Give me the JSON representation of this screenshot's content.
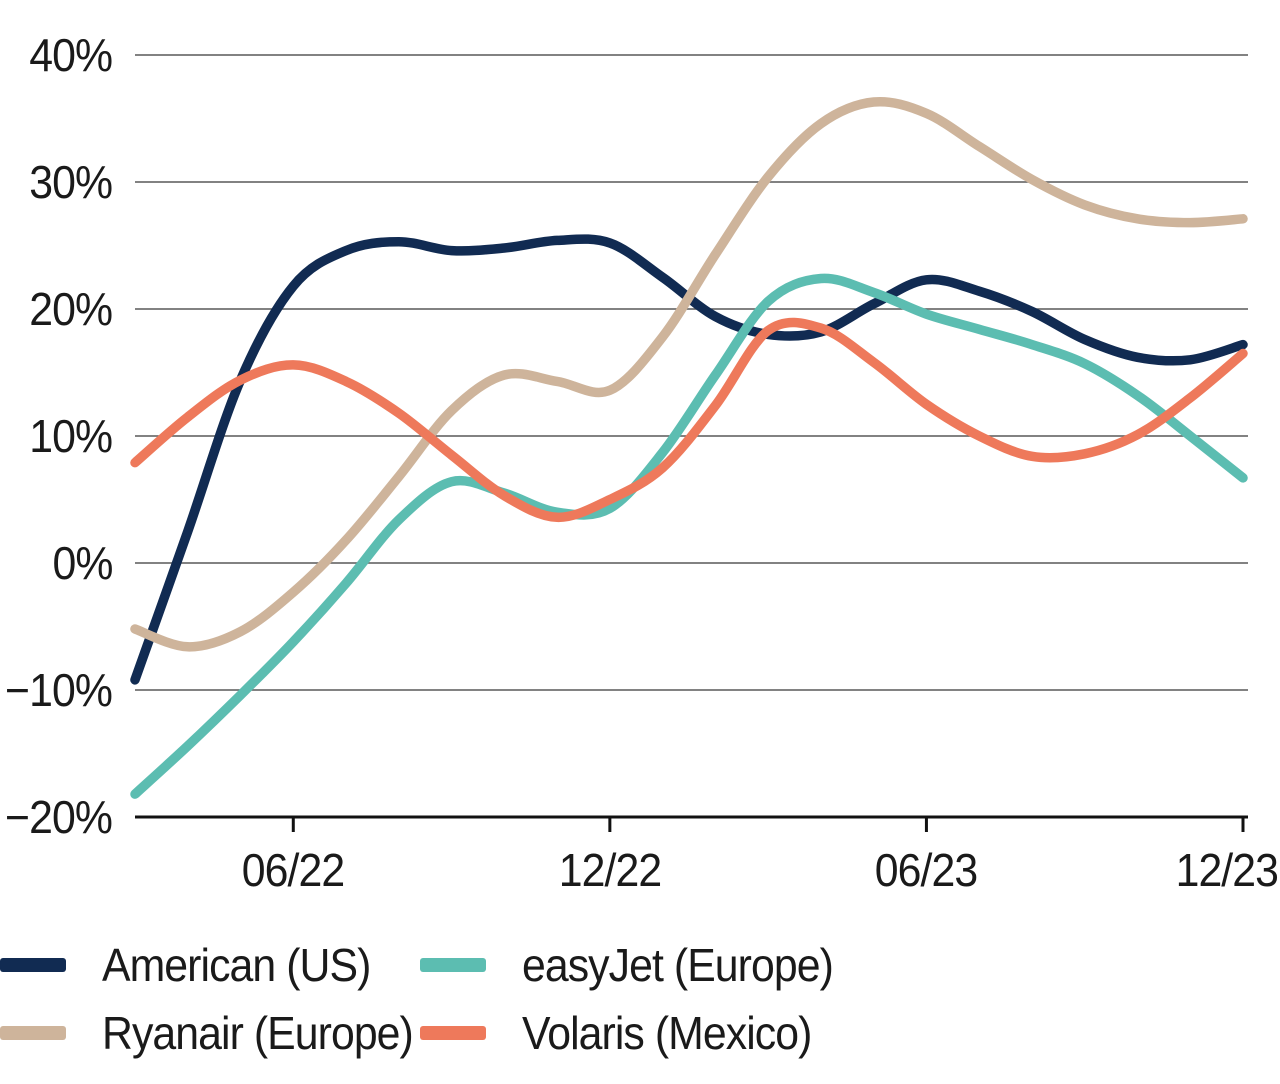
{
  "chart_data": {
    "type": "line",
    "title": "",
    "ylim": [
      -20,
      40
    ],
    "grid": true,
    "legend_position": "bottom-left",
    "yticks": [
      {
        "value": 40,
        "label": "40%"
      },
      {
        "value": 30,
        "label": "30%"
      },
      {
        "value": 20,
        "label": "20%"
      },
      {
        "value": 10,
        "label": "10%"
      },
      {
        "value": 0,
        "label": "0%"
      },
      {
        "value": -10,
        "label": "−10%"
      },
      {
        "value": -20,
        "label": "−20%"
      }
    ],
    "x_ticks": [
      {
        "index": 3,
        "label": "06/22"
      },
      {
        "index": 9,
        "label": "12/22"
      },
      {
        "index": 15,
        "label": "06/23"
      },
      {
        "index": 21,
        "label": "12/23"
      }
    ],
    "unit": "%",
    "series": [
      {
        "name": "American (US)",
        "color": "#112b52",
        "values": [
          -9.2,
          2.5,
          14.4,
          21.8,
          24.6,
          25.3,
          24.6,
          24.8,
          25.4,
          25.2,
          22.5,
          19.4,
          18.0,
          18.2,
          20.4,
          22.3,
          21.4,
          19.8,
          17.6,
          16.2,
          16.0,
          17.2
        ]
      },
      {
        "name": "Ryanair (Europe)",
        "color": "#ceb49b",
        "values": [
          -5.2,
          -6.6,
          -5.4,
          -2.3,
          1.8,
          6.8,
          12.0,
          14.8,
          14.3,
          13.6,
          17.8,
          24.3,
          30.4,
          34.6,
          36.3,
          35.4,
          32.8,
          30.2,
          28.2,
          27.1,
          26.8,
          27.1
        ]
      },
      {
        "name": "easyJet (Europe)",
        "color": "#5cbdb1",
        "values": [
          -18.2,
          -14.4,
          -10.4,
          -6.2,
          -1.6,
          3.4,
          6.4,
          5.5,
          4.0,
          4.3,
          8.7,
          14.8,
          20.6,
          22.4,
          21.3,
          19.6,
          18.4,
          17.2,
          15.7,
          13.2,
          10.0,
          6.7
        ]
      },
      {
        "name": "Volaris (Mexico)",
        "color": "#ee795b",
        "values": [
          7.9,
          11.5,
          14.4,
          15.6,
          14.3,
          11.8,
          8.5,
          5.3,
          3.6,
          5.0,
          7.5,
          12.4,
          18.3,
          18.5,
          15.8,
          12.5,
          10.0,
          8.4,
          8.6,
          10.1,
          13.0,
          16.5
        ]
      }
    ],
    "axis_color": "#111111",
    "gridline_color": "#595959",
    "text_color": "#1a1a1a"
  }
}
